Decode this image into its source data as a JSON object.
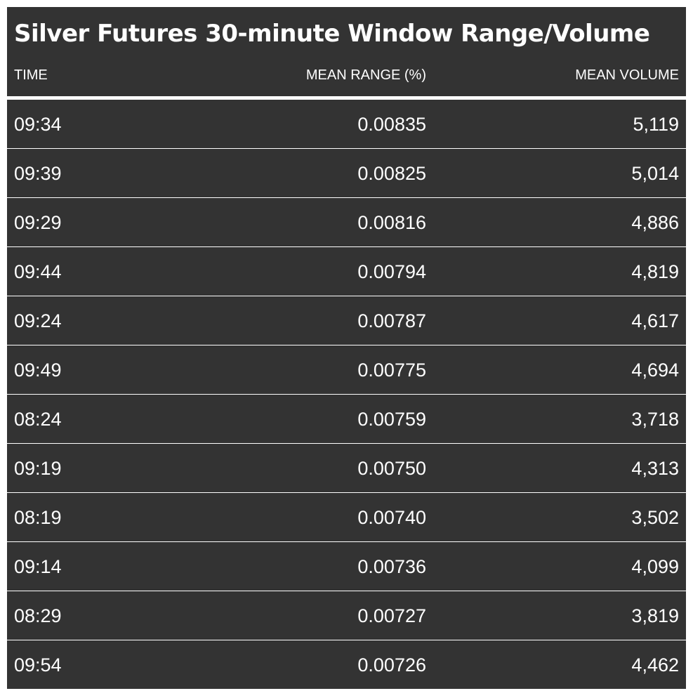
{
  "chart_data": {
    "type": "table",
    "title": "Silver Futures 30-minute Window Range/Volume",
    "columns": [
      "TIME",
      "MEAN RANGE (%)",
      "MEAN VOLUME"
    ],
    "rows": [
      [
        "09:34",
        "0.00835",
        "5,119"
      ],
      [
        "09:39",
        "0.00825",
        "5,014"
      ],
      [
        "09:29",
        "0.00816",
        "4,886"
      ],
      [
        "09:44",
        "0.00794",
        "4,819"
      ],
      [
        "09:24",
        "0.00787",
        "4,617"
      ],
      [
        "09:49",
        "0.00775",
        "4,694"
      ],
      [
        "08:24",
        "0.00759",
        "3,718"
      ],
      [
        "09:19",
        "0.00750",
        "4,313"
      ],
      [
        "08:19",
        "0.00740",
        "3,502"
      ],
      [
        "09:14",
        "0.00736",
        "4,099"
      ],
      [
        "08:29",
        "0.00727",
        "3,819"
      ],
      [
        "09:54",
        "0.00726",
        "4,462"
      ]
    ],
    "colors": {
      "row_background": "#333333",
      "text": "#ffffff",
      "divider": "#ffffff"
    }
  }
}
